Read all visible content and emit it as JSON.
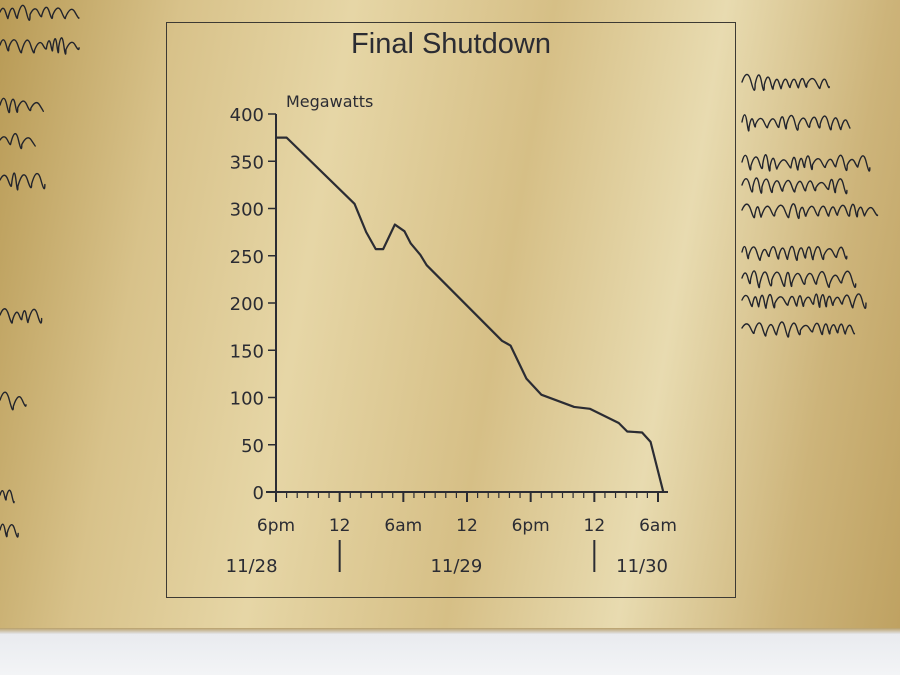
{
  "plaque": {
    "title": "Final Shutdown",
    "colors": {
      "gold": "#dcc68f",
      "ink": "#2b2c33"
    }
  },
  "chart_data": {
    "type": "line",
    "title": "Final Shutdown",
    "xlabel": "",
    "ylabel": "Megawatts",
    "ylim": [
      0,
      400
    ],
    "y_ticks": [
      0,
      50,
      100,
      150,
      200,
      250,
      300,
      350,
      400
    ],
    "x_tick_labels": [
      "6pm",
      "12",
      "6am",
      "12",
      "6pm",
      "12",
      "6am"
    ],
    "date_labels": [
      "11/28",
      "11/29",
      "11/30"
    ],
    "x_unit": "hours after 6pm 11/28",
    "x_tick_hours": [
      0,
      6,
      12,
      18,
      24,
      30,
      36
    ],
    "grid": false,
    "series": [
      {
        "x": [
          0,
          1,
          7.4,
          8.5,
          9.4,
          10.1,
          11.2,
          12.1,
          12.7,
          13.6,
          14.2,
          21.3,
          22.1,
          23.6,
          25.0,
          28.1,
          29.6,
          32.3,
          33.1,
          34.5,
          35.3,
          36.5
        ],
        "y": [
          375,
          375,
          305,
          275,
          257,
          257,
          283,
          276,
          263,
          251,
          240,
          160,
          155,
          120,
          103,
          90,
          88,
          73,
          64,
          63,
          53,
          0
        ]
      }
    ]
  },
  "signatures_left": [
    "Mora",
    "Jose",
    "Ramy",
    "Rayn",
    "Willie",
    "Tom",
    "Bo",
    "Lee"
  ],
  "signatures_right": [
    "James Drake",
    "Walt Young",
    "Thomas Applegate",
    "Fred Ely",
    "Vance Goodall",
    "Andrew Stream",
    "Angel Garcia",
    "Raymond Wells"
  ]
}
